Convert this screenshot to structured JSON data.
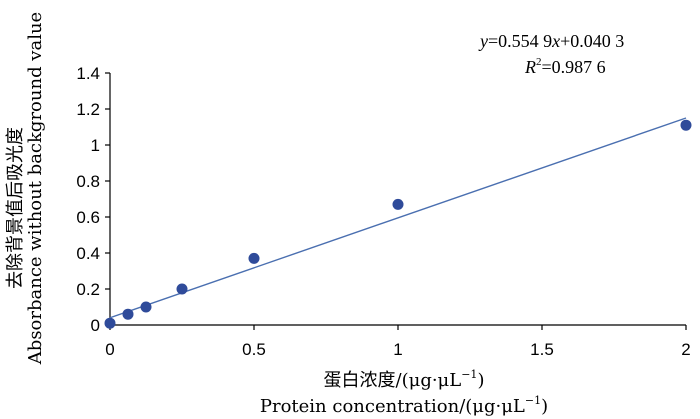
{
  "chart_data": {
    "type": "scatter",
    "xlabel_cn": "蛋白浓度/(μg·μL",
    "xlabel_en": "Protein concentration/(μg·μL",
    "xlabel_unit_exp": "−1",
    "xlabel_close": ")",
    "ylabel_cn": "去除背景值后吸光度",
    "ylabel_en": "Absorbance without background value",
    "x_ticks": [
      "0",
      "0.5",
      "1",
      "1.5",
      "2"
    ],
    "y_ticks": [
      "0",
      "0.2",
      "0.4",
      "0.6",
      "0.8",
      "1",
      "1.2",
      "1.4"
    ],
    "xlim": [
      0,
      2
    ],
    "ylim": [
      0,
      1.4
    ],
    "grid": false,
    "marker_color": "#2f4b9a",
    "line_color": "#4a6fb0",
    "series": [
      {
        "x": [
          0,
          0.0625,
          0.125,
          0.25,
          0.5,
          1,
          2
        ],
        "y": [
          0.01,
          0.06,
          0.1,
          0.2,
          0.37,
          0.67,
          1.11
        ]
      }
    ],
    "trendline": {
      "slope": 0.5549,
      "intercept": 0.0403,
      "x_range": [
        0,
        2
      ]
    },
    "equation": {
      "y_var": "y",
      "eq_rest": "=0.554 9",
      "x_var": "x",
      "eq_tail": "+0.040 3",
      "r_var": "R",
      "r_exp": "2",
      "r_rest": "=0.987 6"
    }
  }
}
